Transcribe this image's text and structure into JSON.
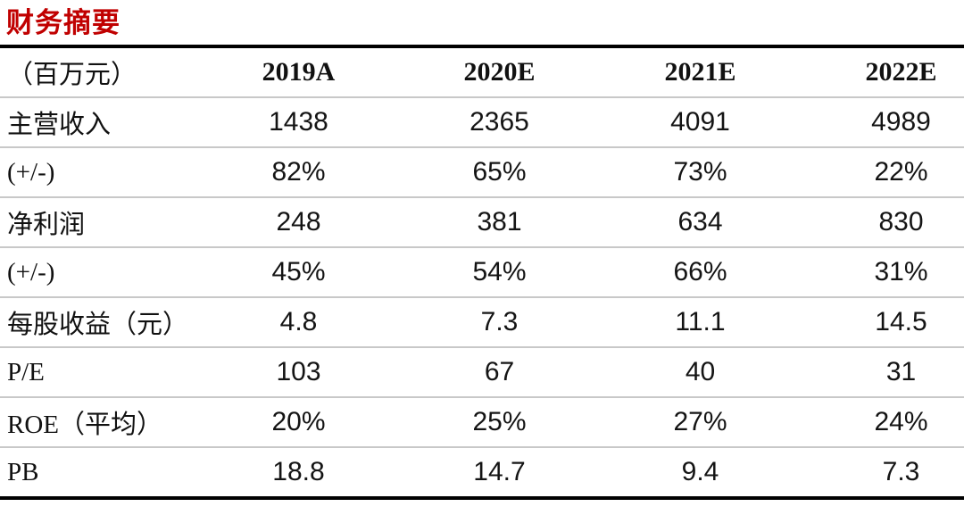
{
  "title": "财务摘要",
  "colors": {
    "title_red": "#c00000",
    "thick_rule": "#000000",
    "thin_rule": "#c8c8c8"
  },
  "table": {
    "header": [
      "（百万元）",
      "2019A",
      "2020E",
      "2021E",
      "2022E"
    ],
    "rows": [
      {
        "label": "主营收入",
        "values": [
          "1438",
          "2365",
          "4091",
          "4989"
        ]
      },
      {
        "label": "(+/-)",
        "values": [
          "82%",
          "65%",
          "73%",
          "22%"
        ]
      },
      {
        "label": "净利润",
        "values": [
          "248",
          "381",
          "634",
          "830"
        ]
      },
      {
        "label": "(+/-)",
        "values": [
          "45%",
          "54%",
          "66%",
          "31%"
        ]
      },
      {
        "label": "每股收益（元）",
        "values": [
          "4.8",
          "7.3",
          "11.1",
          "14.5"
        ]
      },
      {
        "label": "P/E",
        "values": [
          "103",
          "67",
          "40",
          "31"
        ]
      },
      {
        "label": "ROE（平均）",
        "values": [
          "20%",
          "25%",
          "27%",
          "24%"
        ]
      },
      {
        "label": "PB",
        "values": [
          "18.8",
          "14.7",
          "9.4",
          "7.3"
        ]
      }
    ]
  }
}
